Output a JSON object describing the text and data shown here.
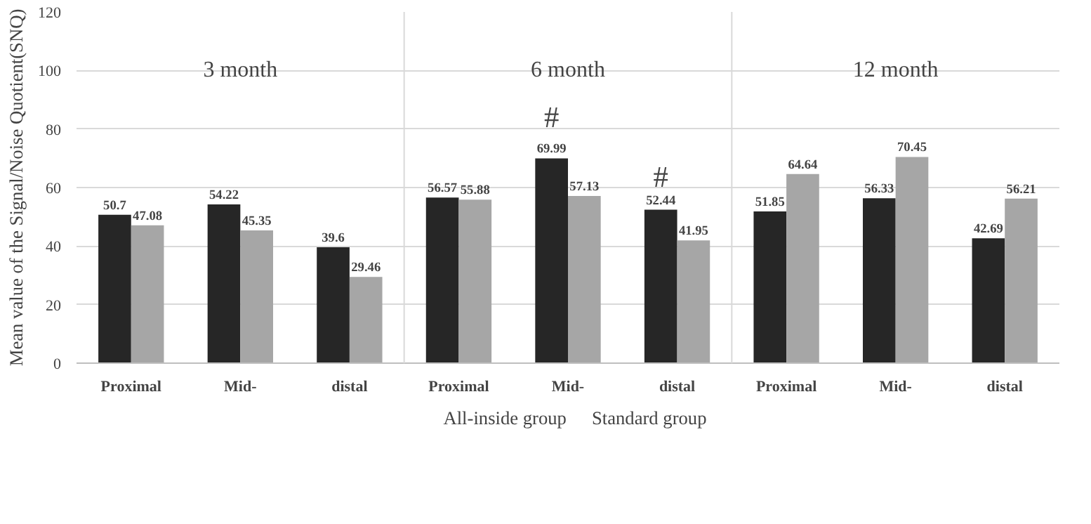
{
  "chart_data": {
    "type": "bar",
    "ylabel": "Mean value of the Signal/Noise Quotient(SNQ)",
    "categories": [
      "Proximal",
      "Mid-",
      "distal",
      "Proximal",
      "Mid-",
      "distal",
      "Proximal",
      "Mid-",
      "distal"
    ],
    "series": [
      {
        "name": "All-inside group",
        "color": "#262626",
        "values": [
          50.7,
          54.22,
          39.6,
          56.57,
          69.99,
          52.44,
          51.85,
          56.33,
          42.69
        ]
      },
      {
        "name": "Standard group",
        "color": "#a6a6a6",
        "values": [
          47.08,
          45.35,
          29.46,
          55.88,
          57.13,
          41.95,
          64.64,
          70.45,
          56.21
        ]
      }
    ],
    "ylim": [
      0,
      120
    ],
    "yticks": [
      0,
      20,
      40,
      60,
      80,
      100,
      120
    ],
    "grid": "y",
    "legend": "bottom",
    "data_labels": true,
    "annotations": [
      "3 month",
      "6 month",
      "12 month",
      "#",
      "#"
    ]
  }
}
